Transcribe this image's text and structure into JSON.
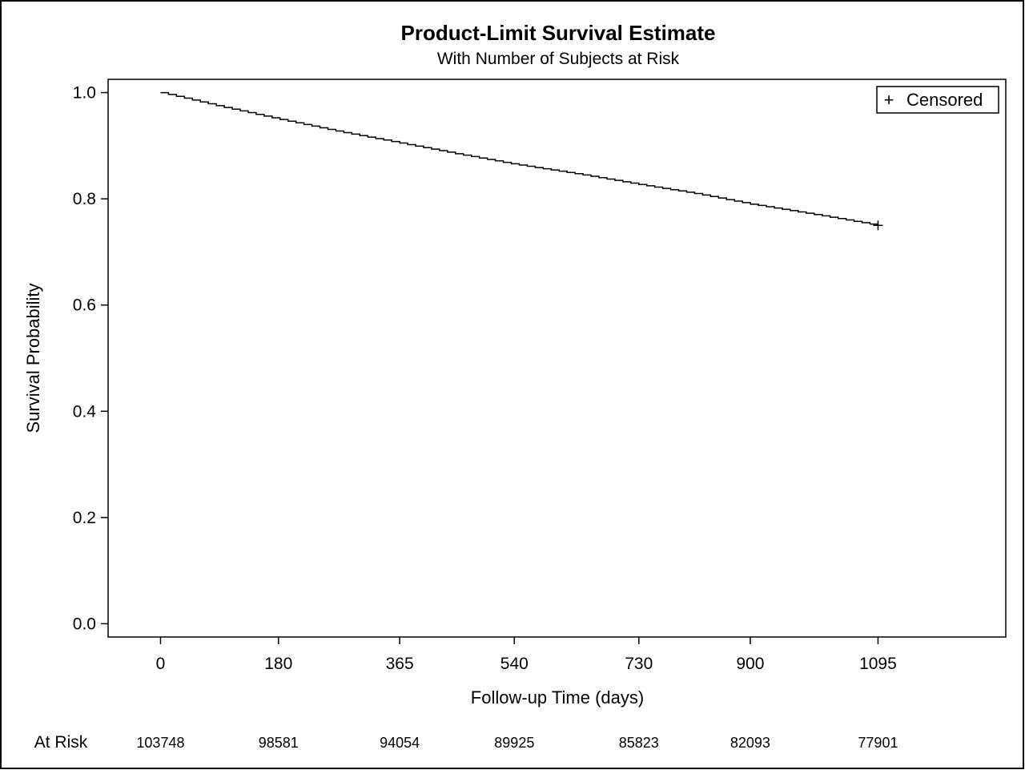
{
  "chart_data": {
    "type": "line",
    "title": "Product-Limit Survival Estimate",
    "subtitle": "With Number of Subjects at Risk",
    "xlabel": "Follow-up Time (days)",
    "ylabel": "Survival Probability",
    "xlim": [
      -80,
      1290
    ],
    "ylim": [
      -0.025,
      1.025
    ],
    "x_ticks": [
      0,
      180,
      365,
      540,
      730,
      900,
      1095
    ],
    "y_ticks": [
      0.0,
      0.2,
      0.4,
      0.6,
      0.8,
      1.0
    ],
    "y_tick_labels": [
      "0.0",
      "0.2",
      "0.4",
      "0.6",
      "0.8",
      "1.0"
    ],
    "grid": false,
    "legend": {
      "position": "top-right",
      "entries": [
        {
          "symbol": "+",
          "label": "Censored"
        }
      ]
    },
    "series": [
      {
        "style": "step",
        "x": [
          0,
          90,
          180,
          270,
          365,
          450,
          540,
          640,
          730,
          820,
          900,
          1000,
          1095
        ],
        "y": [
          1.0,
          0.974,
          0.95,
          0.927,
          0.905,
          0.885,
          0.865,
          0.846,
          0.827,
          0.809,
          0.79,
          0.77,
          0.75
        ]
      }
    ],
    "censored_points": [
      {
        "x": 1095,
        "y": 0.75
      }
    ],
    "at_risk": {
      "label": "At Risk",
      "times": [
        0,
        180,
        365,
        540,
        730,
        900,
        1095
      ],
      "values": [
        "103748",
        "98581",
        "94054",
        "89925",
        "85823",
        "82093",
        "77901"
      ]
    }
  }
}
